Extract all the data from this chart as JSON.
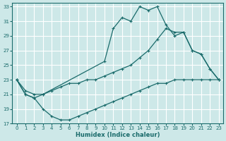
{
  "xlabel": "Humidex (Indice chaleur)",
  "bg_color": "#cde8e8",
  "grid_color": "#ffffff",
  "line_color": "#1a6b6b",
  "xlim": [
    -0.5,
    23.5
  ],
  "ylim": [
    17,
    33.5
  ],
  "xticks": [
    0,
    1,
    2,
    3,
    4,
    5,
    6,
    7,
    8,
    9,
    10,
    11,
    12,
    13,
    14,
    15,
    16,
    17,
    18,
    19,
    20,
    21,
    22,
    23
  ],
  "yticks": [
    17,
    19,
    21,
    23,
    25,
    27,
    29,
    31,
    33
  ],
  "line1": {
    "x": [
      0,
      1,
      2,
      3,
      10,
      11,
      12,
      13,
      14,
      15,
      16,
      17,
      18,
      19,
      20,
      21,
      22,
      23
    ],
    "y": [
      23,
      21,
      20.5,
      21,
      25.5,
      30,
      31.5,
      31,
      33,
      32.5,
      33,
      30.5,
      29,
      29.5,
      27,
      26.5,
      24.5,
      23
    ]
  },
  "line2": {
    "x": [
      0,
      1,
      2,
      3,
      4,
      5,
      6,
      7,
      8,
      9,
      10,
      11,
      12,
      13,
      14,
      15,
      16,
      17,
      18,
      19,
      20,
      21,
      22,
      23
    ],
    "y": [
      23,
      21.5,
      21,
      21,
      21.5,
      22,
      22.5,
      22.5,
      23,
      23,
      23.5,
      24,
      24.5,
      25,
      26,
      27,
      28.5,
      30,
      29.5,
      29.5,
      27,
      26.5,
      24.5,
      23
    ]
  },
  "line3": {
    "x": [
      0,
      1,
      2,
      3,
      4,
      5,
      6,
      7,
      8,
      9,
      10,
      11,
      12,
      13,
      14,
      15,
      16,
      17,
      18,
      19,
      20,
      21,
      22,
      23
    ],
    "y": [
      23,
      21,
      20.5,
      19,
      18,
      17.5,
      17.5,
      18,
      18.5,
      19,
      19.5,
      20,
      20.5,
      21,
      21.5,
      22,
      22.5,
      22.5,
      23,
      23,
      23,
      23,
      23,
      23
    ]
  }
}
